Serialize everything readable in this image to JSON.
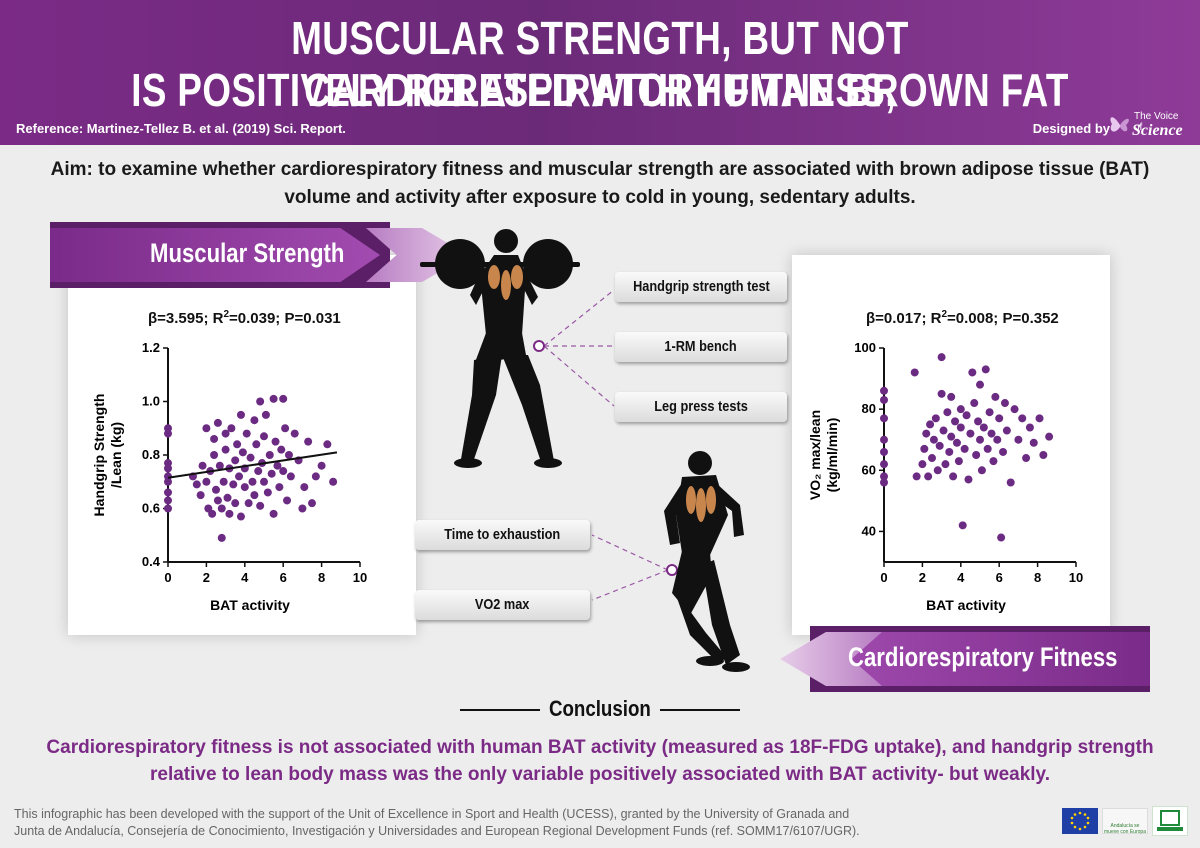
{
  "header": {
    "title_line1": "MUSCULAR STRENGTH, BUT NOT CARDIORESPIRATORY FITNESS,",
    "title_line2": "IS POSITIVELY RELATED WITH HUMAN BROWN FAT",
    "reference": "Reference: Martinez-Tellez B. et al. (2019) Sci. Report.",
    "designed_by": "Designed by",
    "logo_line1": "The Voice of",
    "logo_line2": "Science"
  },
  "aim": "Aim: to examine whether cardiorespiratory fitness and muscular strength are associated with brown adipose tissue (BAT) volume and activity after exposure to cold in young, sedentary adults.",
  "muscular": {
    "banner": "Muscular Strength",
    "stat_beta": "β=3.595; R",
    "stat_sup": "2",
    "stat_rest": "=0.039; P=0.031",
    "tests": [
      "Handgrip strength test",
      "1-RM bench",
      "Leg press tests"
    ]
  },
  "cardio": {
    "banner": "Cardiorespiratory Fitness",
    "stat_beta": "β=0.017; R",
    "stat_sup": "2",
    "stat_rest": "=0.008; P=0.352",
    "tests": [
      "Time to exhaustion",
      "VO2 max"
    ]
  },
  "chart_data": [
    {
      "type": "scatter",
      "title": "",
      "xlabel": "BAT activity",
      "ylabel_line1": "Handgrip Strength",
      "ylabel_line2": "/Lean (kg)",
      "xlim": [
        0,
        10
      ],
      "ylim": [
        0.4,
        1.2
      ],
      "xticks": [
        0,
        2,
        4,
        6,
        8,
        10
      ],
      "yticks": [
        0.4,
        0.6,
        0.8,
        1.0,
        1.2
      ],
      "ytick_labels": [
        "0.4",
        "0.6",
        "0.8",
        "1.0",
        "1.2"
      ],
      "regression": {
        "x": [
          0,
          8.8
        ],
        "y": [
          0.715,
          0.81
        ]
      },
      "points": [
        [
          0,
          0.6
        ],
        [
          0,
          0.63
        ],
        [
          0,
          0.66
        ],
        [
          0,
          0.7
        ],
        [
          0,
          0.72
        ],
        [
          0,
          0.75
        ],
        [
          0,
          0.77
        ],
        [
          0,
          0.88
        ],
        [
          0,
          0.9
        ],
        [
          1.3,
          0.72
        ],
        [
          1.5,
          0.69
        ],
        [
          1.7,
          0.65
        ],
        [
          1.8,
          0.76
        ],
        [
          2.0,
          0.7
        ],
        [
          2.0,
          0.9
        ],
        [
          2.1,
          0.6
        ],
        [
          2.2,
          0.74
        ],
        [
          2.3,
          0.58
        ],
        [
          2.4,
          0.8
        ],
        [
          2.4,
          0.86
        ],
        [
          2.5,
          0.67
        ],
        [
          2.6,
          0.63
        ],
        [
          2.6,
          0.92
        ],
        [
          2.7,
          0.76
        ],
        [
          2.8,
          0.6
        ],
        [
          2.8,
          0.49
        ],
        [
          2.9,
          0.7
        ],
        [
          3.0,
          0.82
        ],
        [
          3.0,
          0.88
        ],
        [
          3.1,
          0.64
        ],
        [
          3.2,
          0.75
        ],
        [
          3.2,
          0.58
        ],
        [
          3.3,
          0.9
        ],
        [
          3.4,
          0.69
        ],
        [
          3.5,
          0.78
        ],
        [
          3.5,
          0.62
        ],
        [
          3.6,
          0.84
        ],
        [
          3.7,
          0.72
        ],
        [
          3.8,
          0.95
        ],
        [
          3.8,
          0.57
        ],
        [
          3.9,
          0.81
        ],
        [
          4.0,
          0.68
        ],
        [
          4.0,
          0.75
        ],
        [
          4.1,
          0.88
        ],
        [
          4.2,
          0.62
        ],
        [
          4.3,
          0.79
        ],
        [
          4.4,
          0.7
        ],
        [
          4.5,
          0.93
        ],
        [
          4.5,
          0.65
        ],
        [
          4.6,
          0.84
        ],
        [
          4.7,
          0.74
        ],
        [
          4.8,
          1.0
        ],
        [
          4.8,
          0.61
        ],
        [
          4.9,
          0.77
        ],
        [
          5.0,
          0.87
        ],
        [
          5.0,
          0.7
        ],
        [
          5.1,
          0.95
        ],
        [
          5.2,
          0.66
        ],
        [
          5.3,
          0.8
        ],
        [
          5.4,
          0.73
        ],
        [
          5.5,
          1.01
        ],
        [
          5.5,
          0.58
        ],
        [
          5.6,
          0.85
        ],
        [
          5.7,
          0.76
        ],
        [
          5.8,
          0.68
        ],
        [
          5.9,
          0.82
        ],
        [
          6.0,
          1.01
        ],
        [
          6.0,
          0.74
        ],
        [
          6.1,
          0.9
        ],
        [
          6.2,
          0.63
        ],
        [
          6.3,
          0.8
        ],
        [
          6.4,
          0.72
        ],
        [
          6.6,
          0.88
        ],
        [
          6.8,
          0.78
        ],
        [
          7.0,
          0.6
        ],
        [
          7.1,
          0.68
        ],
        [
          7.3,
          0.85
        ],
        [
          7.5,
          0.62
        ],
        [
          7.7,
          0.72
        ],
        [
          8.0,
          0.76
        ],
        [
          8.3,
          0.84
        ],
        [
          8.6,
          0.7
        ]
      ]
    },
    {
      "type": "scatter",
      "title": "",
      "xlabel": "BAT activity",
      "ylabel_line1": "VO₂ max/lean",
      "ylabel_line2": "(kg/ml/min)",
      "xlim": [
        0,
        10
      ],
      "ylim": [
        30,
        100
      ],
      "xticks": [
        0,
        2,
        4,
        6,
        8,
        10
      ],
      "yticks": [
        40,
        60,
        80,
        100
      ],
      "ytick_labels": [
        "40",
        "60",
        "80",
        "100"
      ],
      "points": [
        [
          0,
          56
        ],
        [
          0,
          58
        ],
        [
          0,
          62
        ],
        [
          0,
          66
        ],
        [
          0,
          70
        ],
        [
          0,
          77
        ],
        [
          0,
          83
        ],
        [
          0,
          86
        ],
        [
          1.6,
          92
        ],
        [
          1.7,
          58
        ],
        [
          2.0,
          62
        ],
        [
          2.1,
          67
        ],
        [
          2.2,
          72
        ],
        [
          2.3,
          58
        ],
        [
          2.4,
          75
        ],
        [
          2.5,
          64
        ],
        [
          2.6,
          70
        ],
        [
          2.7,
          77
        ],
        [
          2.8,
          60
        ],
        [
          2.9,
          68
        ],
        [
          3.0,
          85
        ],
        [
          3.0,
          97
        ],
        [
          3.1,
          73
        ],
        [
          3.2,
          62
        ],
        [
          3.3,
          79
        ],
        [
          3.4,
          66
        ],
        [
          3.5,
          71
        ],
        [
          3.5,
          84
        ],
        [
          3.6,
          58
        ],
        [
          3.7,
          76
        ],
        [
          3.8,
          69
        ],
        [
          3.9,
          63
        ],
        [
          4.0,
          80
        ],
        [
          4.0,
          74
        ],
        [
          4.1,
          42
        ],
        [
          4.2,
          67
        ],
        [
          4.3,
          78
        ],
        [
          4.4,
          57
        ],
        [
          4.5,
          72
        ],
        [
          4.6,
          92
        ],
        [
          4.7,
          82
        ],
        [
          4.8,
          65
        ],
        [
          4.9,
          76
        ],
        [
          5.0,
          70
        ],
        [
          5.0,
          88
        ],
        [
          5.1,
          60
        ],
        [
          5.2,
          74
        ],
        [
          5.3,
          93
        ],
        [
          5.4,
          67
        ],
        [
          5.5,
          79
        ],
        [
          5.6,
          72
        ],
        [
          5.7,
          63
        ],
        [
          5.8,
          84
        ],
        [
          5.9,
          70
        ],
        [
          6.0,
          77
        ],
        [
          6.1,
          38
        ],
        [
          6.2,
          66
        ],
        [
          6.3,
          82
        ],
        [
          6.4,
          73
        ],
        [
          6.6,
          56
        ],
        [
          6.8,
          80
        ],
        [
          7.0,
          70
        ],
        [
          7.2,
          77
        ],
        [
          7.4,
          64
        ],
        [
          7.6,
          74
        ],
        [
          7.8,
          69
        ],
        [
          8.1,
          77
        ],
        [
          8.3,
          65
        ],
        [
          8.6,
          71
        ]
      ]
    }
  ],
  "conclusion": {
    "title": "Conclusion",
    "text": "Cardiorespiratory fitness is not associated with human BAT activity  (measured  as 18F-FDG uptake), and handgrip strength relative to lean body mass was the only variable positively associated with BAT activity- but weakly."
  },
  "footer": {
    "line1": "This infographic has been developed with the support of the Unit of Excellence in Sport and Health (UCESS), granted by the University of Granada and",
    "line2": "Junta de  Andalucía, Consejería de Conocimiento, Investigación y Universidades and European Regional Development Funds (ref. SOMM17/6107/UGR).",
    "andalucia_logo_text": "Andalucía se mueve con Europa"
  },
  "colors": {
    "purple": "#7b2b86",
    "point": "#6c2b83",
    "muscle": "#c8864d"
  }
}
